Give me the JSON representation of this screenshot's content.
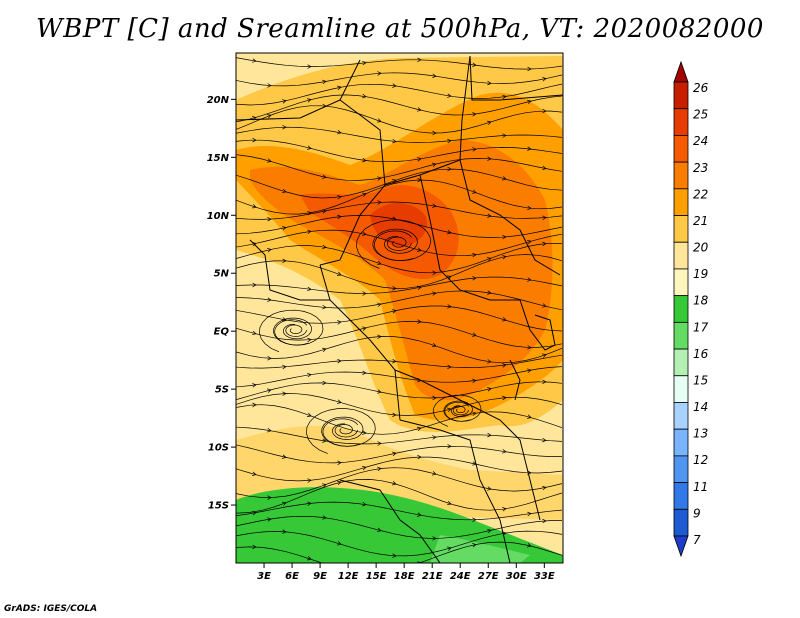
{
  "title": "WBPT [C] and Sreamline at 500hPa, VT: 2020082000",
  "footer": "GrADS: IGES/COLA",
  "map": {
    "lon_range": [
      0,
      35
    ],
    "lat_range": [
      -20,
      24
    ],
    "lat_ticks": [
      "20N",
      "15N",
      "10N",
      "5N",
      "EQ",
      "5S",
      "10S",
      "15S"
    ],
    "lat_tick_values": [
      20,
      15,
      10,
      5,
      0,
      -5,
      -10,
      -15
    ],
    "lon_ticks": [
      "3E",
      "6E",
      "9E",
      "12E",
      "15E",
      "18E",
      "21E",
      "24E",
      "27E",
      "30E",
      "33E"
    ],
    "lon_tick_values": [
      3,
      6,
      9,
      12,
      15,
      18,
      21,
      24,
      27,
      30,
      33
    ]
  },
  "colorbar": {
    "labels": [
      "26",
      "25",
      "24",
      "23",
      "22",
      "21",
      "20",
      "19",
      "18",
      "17",
      "16",
      "15",
      "14",
      "13",
      "12",
      "11",
      "9",
      "7"
    ],
    "colors": [
      "#a50000",
      "#c81e00",
      "#e63c00",
      "#f55a00",
      "#fa7d00",
      "#ffa000",
      "#ffc846",
      "#ffe69b",
      "#fff5be",
      "#37c837",
      "#64dc64",
      "#b4f0b4",
      "#e6fff5",
      "#aad2ff",
      "#78b4ff",
      "#5096f0",
      "#3278e6",
      "#1e5ad2",
      "#1e3cc8"
    ]
  },
  "palette": {
    "green_dark": "#37c837",
    "green_light": "#64dc64",
    "yellow_pale": "#fff5be",
    "yellow": "#ffe69b",
    "orange_light": "#ffc846",
    "orange": "#ffa000",
    "orange_dark": "#fa7d00",
    "red_orange": "#f55a00"
  }
}
